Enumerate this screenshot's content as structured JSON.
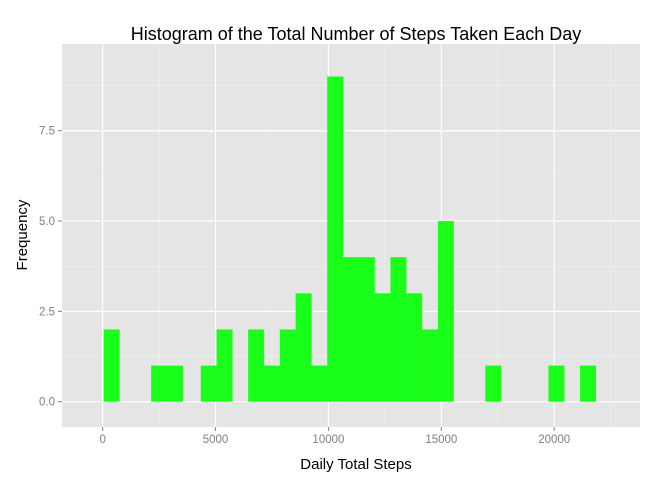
{
  "chart_data": {
    "type": "bar",
    "title": "Histogram of the Total Number of Steps Taken Each Day",
    "xlabel": "Daily Total Steps",
    "ylabel": "Frequency",
    "bin_width": 707,
    "bins": [
      {
        "x": 400,
        "count": 2
      },
      {
        "x": 2500,
        "count": 1
      },
      {
        "x": 3200,
        "count": 1
      },
      {
        "x": 4700,
        "count": 1
      },
      {
        "x": 5400,
        "count": 2
      },
      {
        "x": 6800,
        "count": 2
      },
      {
        "x": 7500,
        "count": 1
      },
      {
        "x": 8200,
        "count": 2
      },
      {
        "x": 8900,
        "count": 3
      },
      {
        "x": 9600,
        "count": 1
      },
      {
        "x": 10300,
        "count": 9
      },
      {
        "x": 11000,
        "count": 4
      },
      {
        "x": 11700,
        "count": 4
      },
      {
        "x": 12400,
        "count": 3
      },
      {
        "x": 13100,
        "count": 4
      },
      {
        "x": 13800,
        "count": 3
      },
      {
        "x": 14500,
        "count": 2
      },
      {
        "x": 15200,
        "count": 5
      },
      {
        "x": 17300,
        "count": 1
      },
      {
        "x": 20100,
        "count": 1
      },
      {
        "x": 21500,
        "count": 1
      }
    ],
    "xlim": [
      -1800,
      23800
    ],
    "ylim": [
      -0.7,
      9.9
    ],
    "x_ticks": [
      0,
      5000,
      10000,
      15000,
      20000
    ],
    "x_tick_labels": [
      "0",
      "5000",
      "10000",
      "15000",
      "20000"
    ],
    "y_ticks": [
      0,
      2.5,
      5,
      7.5
    ],
    "y_tick_labels": [
      "0.0",
      "2.5",
      "5.0",
      "7.5"
    ],
    "grid": true,
    "bar_color": "#19ff19",
    "panel_color": "#e5e5e5",
    "grid_color": "#ffffff",
    "minor_grid_color": "#f2f2f2"
  }
}
